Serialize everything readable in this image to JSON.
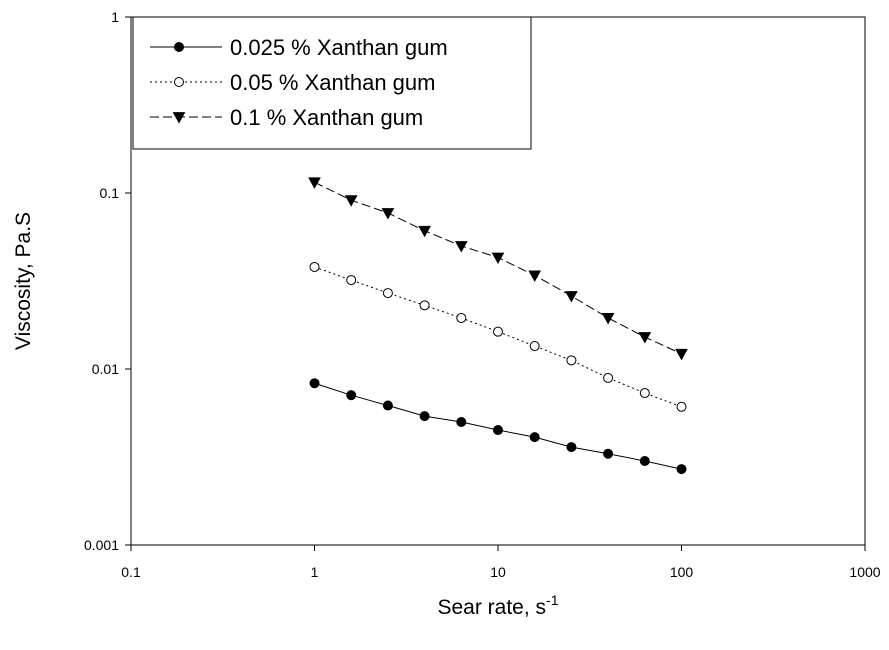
{
  "chart_data": {
    "type": "line",
    "title": "",
    "xlabel": "Sear rate, s",
    "xlabel_superscript": "-1",
    "ylabel": "Viscosity, Pa.S",
    "x_scale": "log",
    "y_scale": "log",
    "xlim": [
      0.1,
      1000
    ],
    "ylim": [
      0.001,
      1
    ],
    "x_ticks": [
      0.1,
      1,
      10,
      100,
      1000
    ],
    "x_tick_labels": [
      "0.1",
      "1",
      "10",
      "100",
      "1000"
    ],
    "y_ticks": [
      0.001,
      0.01,
      0.1,
      1
    ],
    "y_tick_labels": [
      "0.001",
      "0.01",
      "0.1",
      "1"
    ],
    "grid": false,
    "legend_position": "top-left",
    "x": [
      1,
      1.585,
      2.512,
      3.981,
      6.31,
      10,
      15.85,
      25.12,
      39.81,
      63.1,
      100
    ],
    "series": [
      {
        "name": "0.025 % Xanthan gum",
        "marker": "filled-circle",
        "line_style": "solid",
        "values": [
          0.0083,
          0.0071,
          0.0062,
          0.0054,
          0.005,
          0.0045,
          0.0041,
          0.0036,
          0.0033,
          0.003,
          0.0027
        ]
      },
      {
        "name": "0.05 % Xanthan gum",
        "marker": "open-circle",
        "line_style": "dotted",
        "values": [
          0.038,
          0.032,
          0.027,
          0.023,
          0.0195,
          0.0163,
          0.0135,
          0.0112,
          0.0089,
          0.0073,
          0.0061
        ]
      },
      {
        "name": "0.1 % Xanthan gum",
        "marker": "filled-triangle-down",
        "line_style": "dashed",
        "values": [
          0.115,
          0.091,
          0.077,
          0.061,
          0.05,
          0.043,
          0.034,
          0.026,
          0.0195,
          0.0152,
          0.0122
        ]
      }
    ]
  }
}
